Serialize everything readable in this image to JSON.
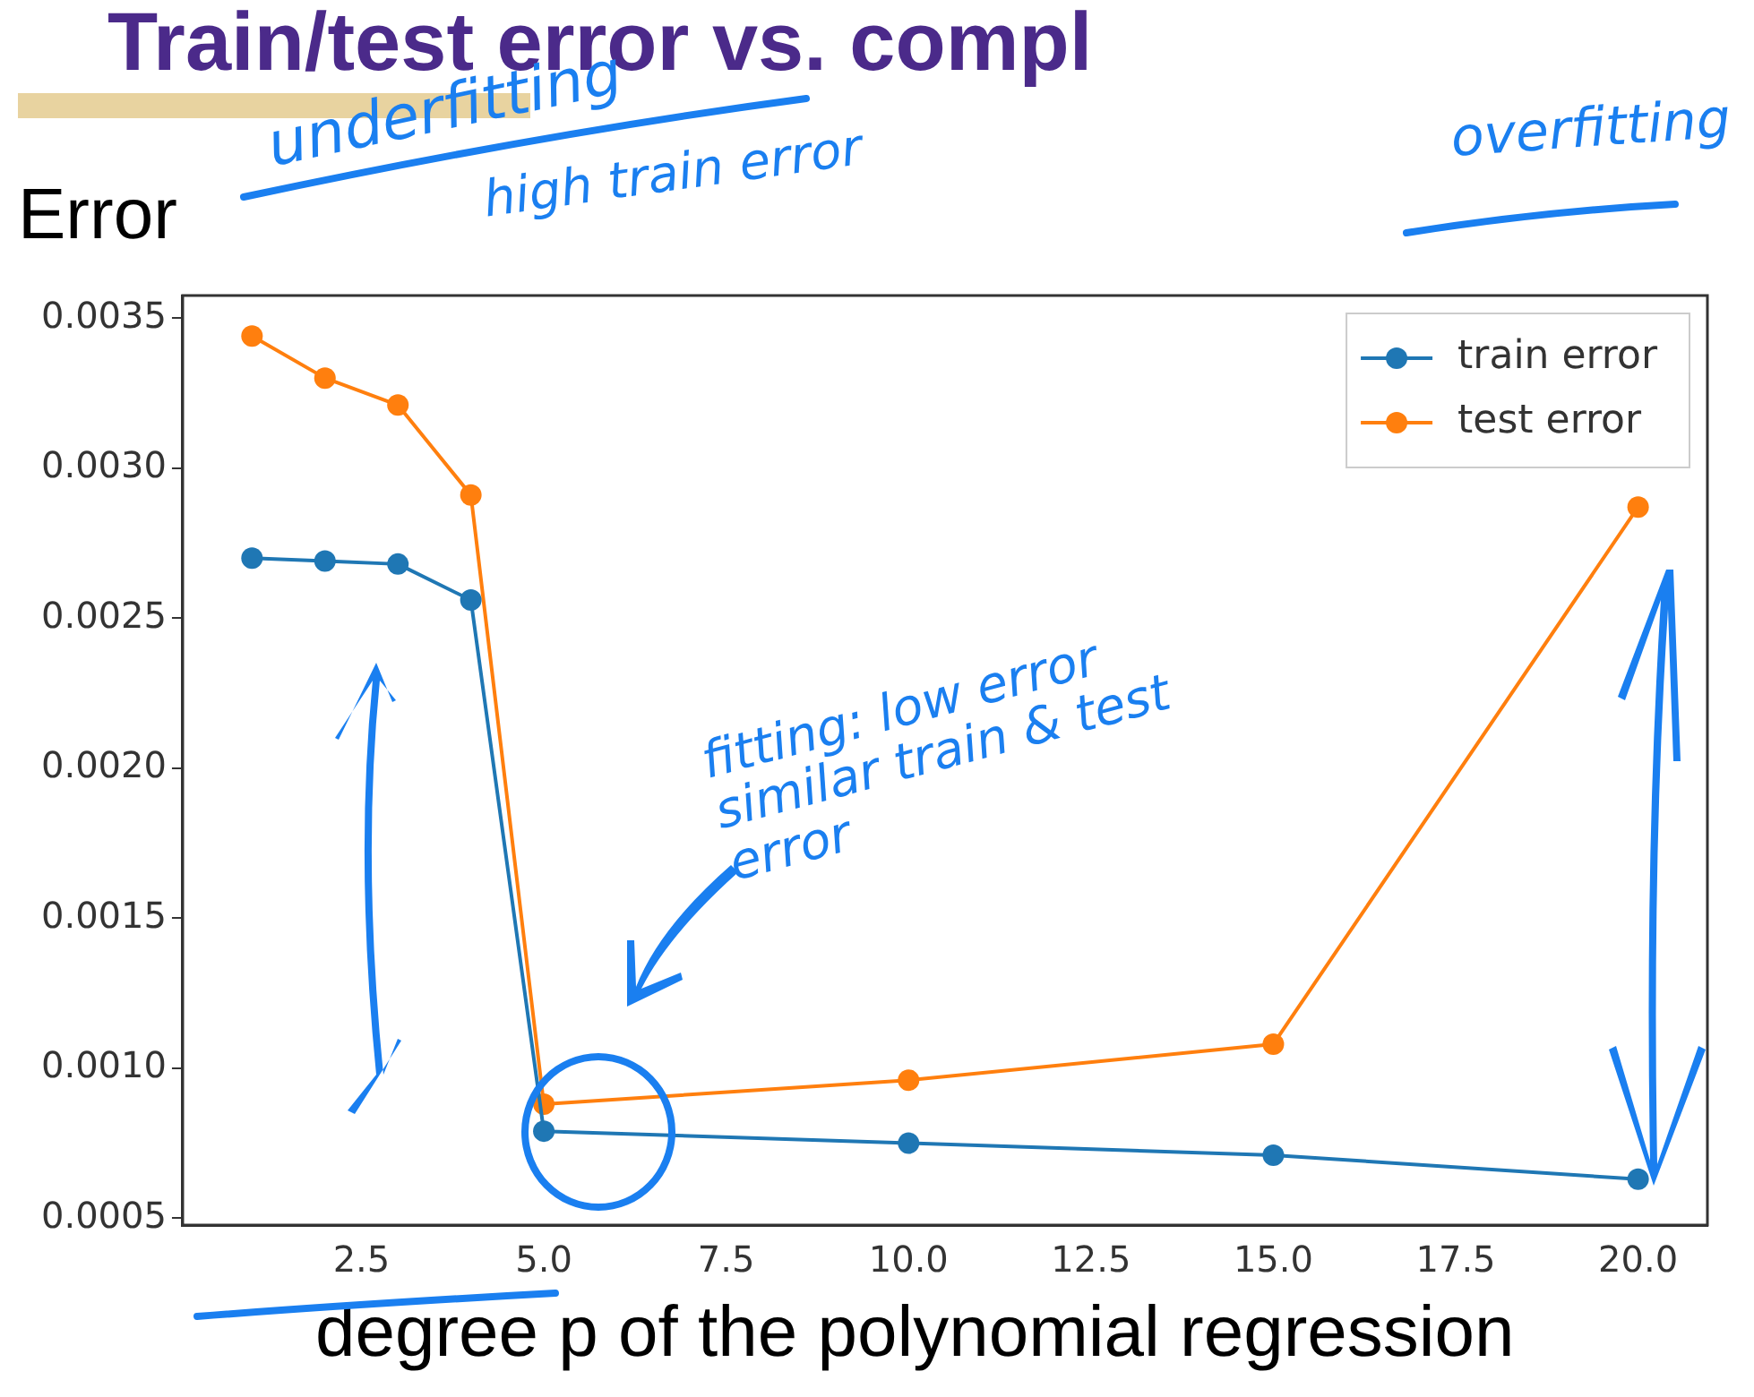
{
  "chart_data": {
    "type": "line",
    "title": "Train/test error vs. compl",
    "xlabel": "degree p of the polynomial regression",
    "ylabel": "Error",
    "x": [
      1,
      2,
      3,
      4,
      5,
      10,
      15,
      20
    ],
    "series": [
      {
        "name": "train error",
        "color": "#1f77b4",
        "values": [
          0.0027,
          0.00269,
          0.00268,
          0.00256,
          0.00079,
          0.00075,
          0.00071,
          0.00063
        ]
      },
      {
        "name": "test error",
        "color": "#ff7f0e",
        "values": [
          0.00344,
          0.0033,
          0.00321,
          0.00291,
          0.00088,
          0.00096,
          0.00108,
          0.00287
        ]
      }
    ],
    "xlim": [
      0.05,
      20.95
    ],
    "xticks": [
      {
        "value": 2.5,
        "label": "2.5"
      },
      {
        "value": 5,
        "label": "5.0"
      },
      {
        "value": 7.5,
        "label": "7.5"
      },
      {
        "value": 10,
        "label": "10.0"
      },
      {
        "value": 12.5,
        "label": "12.5"
      },
      {
        "value": 15,
        "label": "15.0"
      },
      {
        "value": 17.5,
        "label": "17.5"
      },
      {
        "value": 20,
        "label": "20.0"
      }
    ],
    "ylim": [
      0.000477,
      0.003575
    ],
    "yticks": [
      {
        "value": 0.0005,
        "label": "0.0005"
      },
      {
        "value": 0.001,
        "label": "0.0010"
      },
      {
        "value": 0.0015,
        "label": "0.0015"
      },
      {
        "value": 0.002,
        "label": "0.0020"
      },
      {
        "value": 0.0025,
        "label": "0.0025"
      },
      {
        "value": 0.003,
        "label": "0.0030"
      },
      {
        "value": 0.0035,
        "label": "0.0035"
      }
    ],
    "grid": false,
    "legend": "top right",
    "marker": "circle",
    "line_style": "solid",
    "annotations": [
      "underfitting",
      "high train error",
      "overfitting",
      "fitting: low error similar train & test error"
    ]
  }
}
